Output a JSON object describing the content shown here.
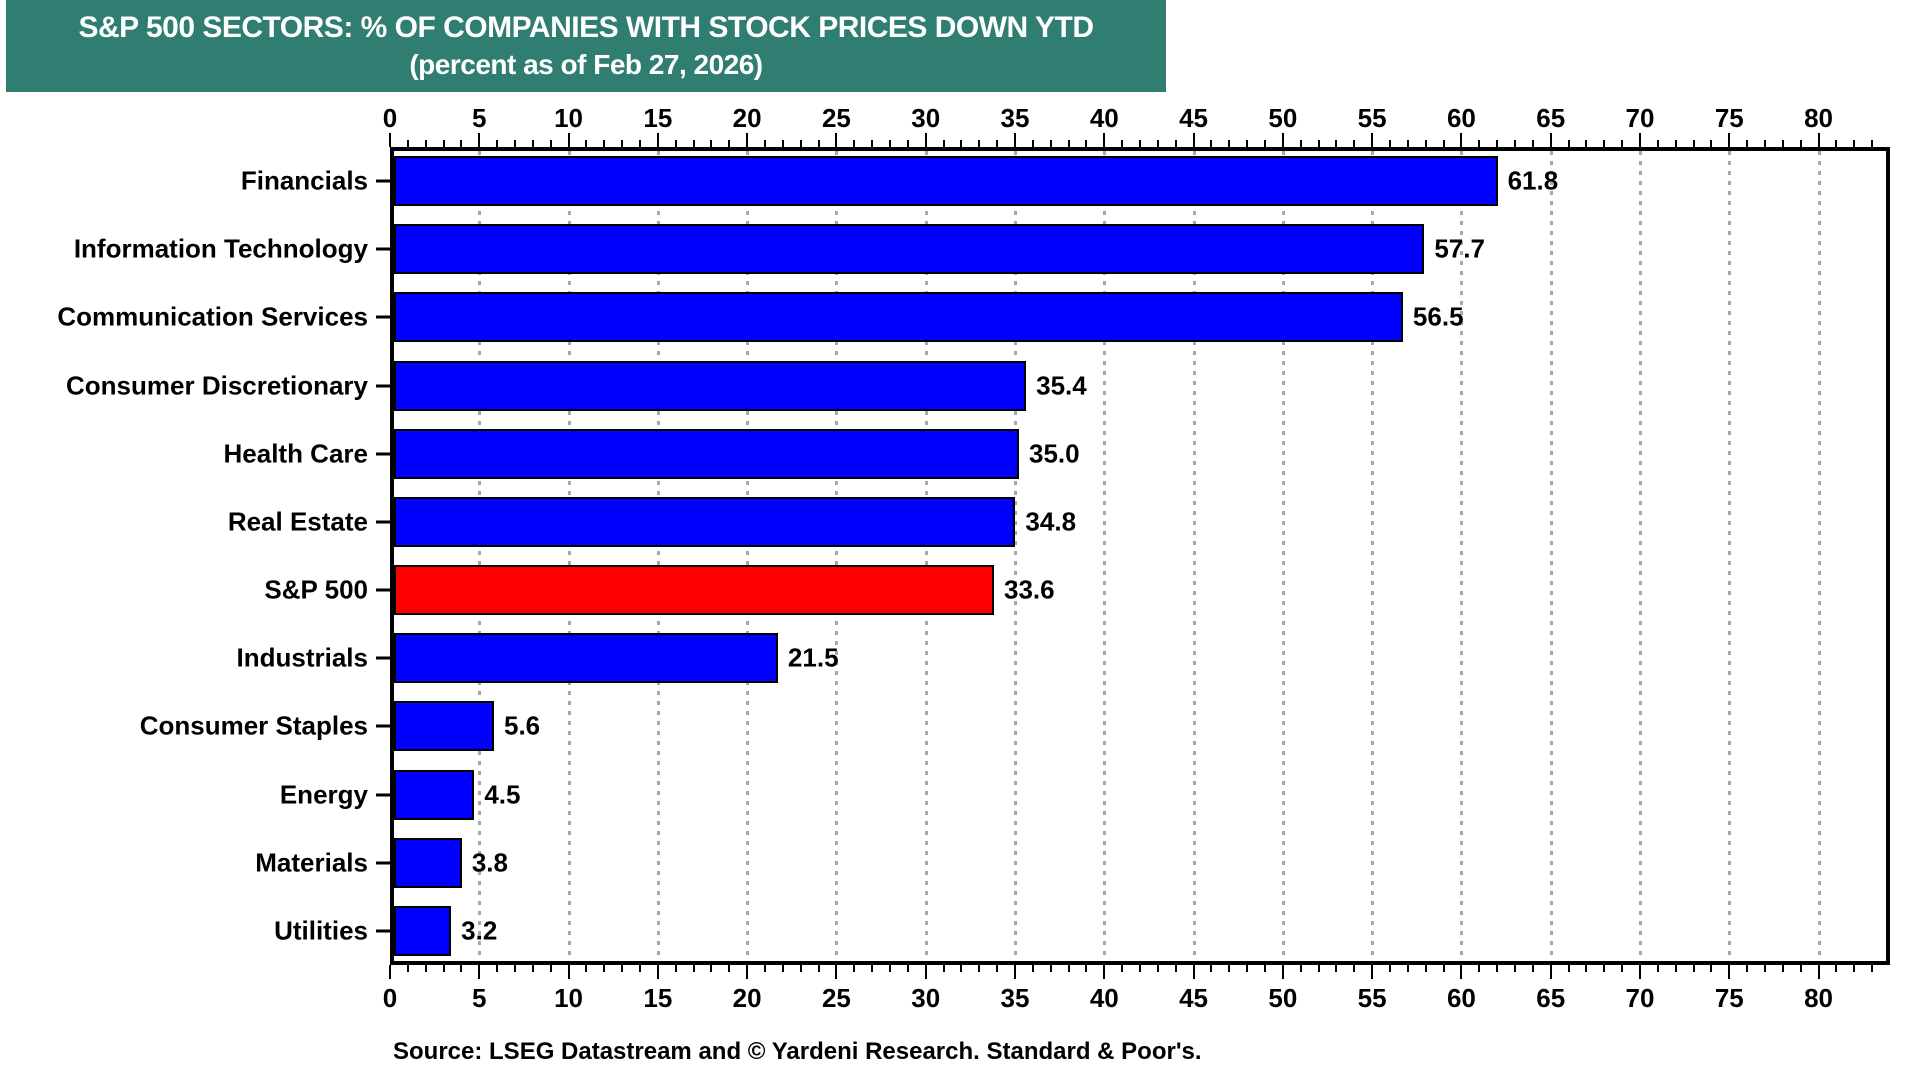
{
  "header": {
    "title_line1": "S&P 500 SECTORS: % OF COMPANIES WITH STOCK PRICES DOWN YTD",
    "title_line2": "(percent as of Feb 27, 2026)",
    "bg_color": "#2F7E71",
    "text_color": "#FFFFFF"
  },
  "source_note": "Source: LSEG Datastream and © Yardeni Research. Standard & Poor's.",
  "chart_data": {
    "type": "bar",
    "orientation": "horizontal",
    "title": "S&P 500 SECTORS: % OF COMPANIES WITH STOCK PRICES DOWN YTD",
    "subtitle": "(percent as of Feb 27, 2026)",
    "categories": [
      "Financials",
      "Information Technology",
      "Communication Services",
      "Consumer Discretionary",
      "Health Care",
      "Real Estate",
      "S&P 500",
      "Industrials",
      "Consumer Staples",
      "Energy",
      "Materials",
      "Utilities"
    ],
    "values": [
      61.8,
      57.7,
      56.5,
      35.4,
      35.0,
      34.8,
      33.6,
      21.5,
      5.6,
      4.5,
      3.8,
      3.2
    ],
    "value_labels": [
      "61.8",
      "57.7",
      "56.5",
      "35.4",
      "35.0",
      "34.8",
      "33.6",
      "21.5",
      "5.6",
      "4.5",
      "3.8",
      "3.2"
    ],
    "highlight_category": "S&P 500",
    "bar_color": "#0000FF",
    "highlight_color": "#FF0000",
    "xlabel": "",
    "ylabel": "",
    "xlim": [
      0,
      84
    ],
    "x_tick_values": [
      0,
      5,
      10,
      15,
      20,
      25,
      30,
      35,
      40,
      45,
      50,
      55,
      60,
      65,
      70,
      75,
      80
    ],
    "x_tick_labels": [
      "0",
      "5",
      "10",
      "15",
      "20",
      "25",
      "30",
      "35",
      "40",
      "45",
      "50",
      "55",
      "60",
      "65",
      "70",
      "75",
      "80"
    ],
    "minor_tick_step": 1,
    "grid": "dashed vertical gridlines at every major tick, gray",
    "grid_color": "#A8A8A8",
    "axes_shown": [
      "top",
      "bottom",
      "left",
      "right"
    ],
    "legend_position": "none"
  }
}
